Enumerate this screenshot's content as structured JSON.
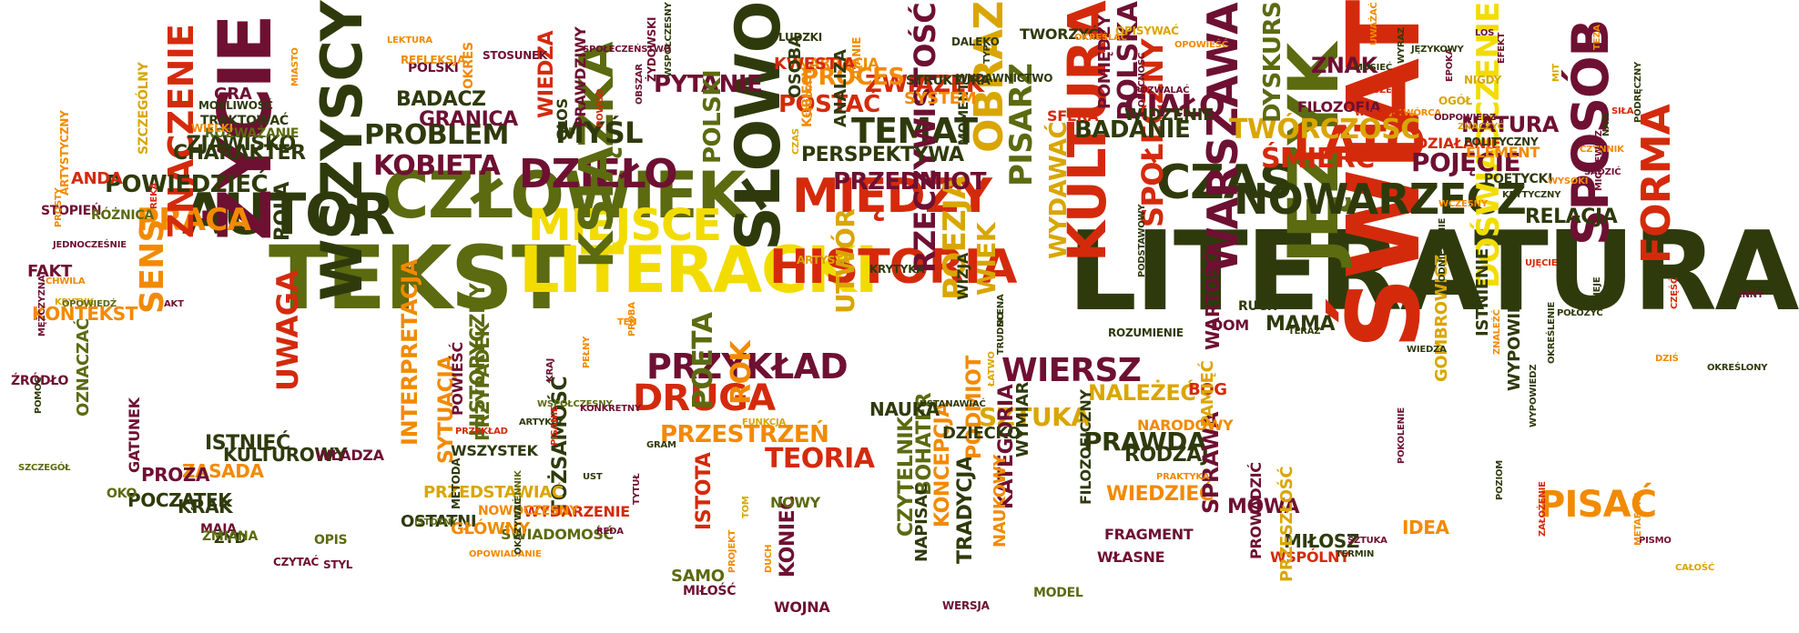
{
  "palette": {
    "dark_green": "#2f3a0c",
    "olive": "#5c6a10",
    "maroon": "#6e1032",
    "red": "#d42a0c",
    "orange": "#f28a00",
    "yellow": "#f2dc00",
    "gold": "#d9a600"
  },
  "words": [
    {
      "text": "LITERATURA",
      "color": "dark_green"
    },
    {
      "text": "TEKST",
      "color": "olive"
    },
    {
      "text": "ŚWIAT",
      "color": "red"
    },
    {
      "text": "CZŁOWIEK",
      "color": "olive"
    },
    {
      "text": "JĘZYK",
      "color": "olive"
    },
    {
      "text": "LITERACKI",
      "color": "yellow"
    },
    {
      "text": "AUTOR",
      "color": "dark_green"
    },
    {
      "text": "SŁOWO",
      "color": "dark_green"
    },
    {
      "text": "WSZYSCY",
      "color": "dark_green"
    },
    {
      "text": "KULTURA",
      "color": "red"
    },
    {
      "text": "ŻYCIE",
      "color": "maroon"
    },
    {
      "text": "HISTORIA",
      "color": "red"
    },
    {
      "text": "MIĘDZY",
      "color": "red"
    },
    {
      "text": "CZAS",
      "color": "dark_green"
    },
    {
      "text": "MIEJSCE",
      "color": "yellow"
    },
    {
      "text": "DZIEŁO",
      "color": "maroon"
    },
    {
      "text": "LATO",
      "color": "red"
    },
    {
      "text": "SPOSÓB",
      "color": "maroon"
    },
    {
      "text": "KSIĄŻKA",
      "color": "olive"
    },
    {
      "text": "NOWARZECZ",
      "color": "dark_green"
    },
    {
      "text": "PRACA",
      "color": "orange"
    },
    {
      "text": "WARSZAWA",
      "color": "maroon"
    },
    {
      "text": "OBRAZ",
      "color": "gold"
    },
    {
      "text": "FORMA",
      "color": "red"
    },
    {
      "text": "DRUGA",
      "color": "red"
    },
    {
      "text": "WIERSZ",
      "color": "maroon"
    },
    {
      "text": "PRZYKŁAD",
      "color": "maroon"
    },
    {
      "text": "DOŚWIADCZENIE",
      "color": "yellow"
    },
    {
      "text": "ZNACZENIE",
      "color": "red"
    },
    {
      "text": "PISAĆ",
      "color": "orange"
    },
    {
      "text": "TEMAT",
      "color": "dark_green"
    },
    {
      "text": "POEZJA",
      "color": "gold"
    },
    {
      "text": "PISARZ",
      "color": "olive"
    },
    {
      "text": "RZECZYWISTOŚĆ",
      "color": "maroon"
    },
    {
      "text": "SPOŁECZNY",
      "color": "red"
    },
    {
      "text": "UWAGA",
      "color": "red"
    },
    {
      "text": "SENS",
      "color": "orange"
    },
    {
      "text": "PROBLEM",
      "color": "dark_green"
    },
    {
      "text": "KOBIETA",
      "color": "maroon"
    },
    {
      "text": "MYŚL",
      "color": "dark_green"
    },
    {
      "text": "TWÓRCZOŚĆ",
      "color": "gold"
    },
    {
      "text": "ŚMIERĆ",
      "color": "red"
    },
    {
      "text": "PRZEDMIOT",
      "color": "maroon"
    },
    {
      "text": "UTWÓR",
      "color": "gold"
    },
    {
      "text": "PRZESTRZEŃ",
      "color": "orange"
    },
    {
      "text": "TEORIA",
      "color": "red"
    },
    {
      "text": "POWIEDZIEĆ",
      "color": "dark_green"
    },
    {
      "text": "PYTANIE",
      "color": "maroon"
    },
    {
      "text": "POETA",
      "color": "olive"
    },
    {
      "text": "ROK",
      "color": "orange"
    },
    {
      "text": "PRAWDA",
      "color": "dark_green"
    },
    {
      "text": "SZTUKA",
      "color": "gold"
    },
    {
      "text": "WIEK",
      "color": "gold"
    },
    {
      "text": "CIAŁO",
      "color": "maroon"
    },
    {
      "text": "POJĘCIE",
      "color": "maroon"
    },
    {
      "text": "WYDAWAĆ",
      "color": "gold"
    },
    {
      "text": "POLSKI",
      "color": "olive"
    },
    {
      "text": "POLSKA",
      "color": "maroon"
    },
    {
      "text": "ZWIĄZEK",
      "color": "red"
    },
    {
      "text": "PROCES",
      "color": "orange"
    },
    {
      "text": "POSTAĆ",
      "color": "red"
    },
    {
      "text": "PERSPEKTYWA",
      "color": "dark_green"
    },
    {
      "text": "BADANIE",
      "color": "dark_green"
    },
    {
      "text": "DYSKURS",
      "color": "olive"
    },
    {
      "text": "NATURA",
      "color": "maroon"
    },
    {
      "text": "RELACJA",
      "color": "dark_green"
    },
    {
      "text": "ZNAK",
      "color": "maroon"
    },
    {
      "text": "CHARAKTER",
      "color": "dark_green"
    },
    {
      "text": "ROLA",
      "color": "dark_green"
    },
    {
      "text": "ZJAWISKO",
      "color": "dark_green"
    },
    {
      "text": "GRANICA",
      "color": "maroon"
    },
    {
      "text": "BADACZ",
      "color": "dark_green"
    },
    {
      "text": "ISTNIEĆ",
      "color": "dark_green"
    },
    {
      "text": "INTERPRETACJA",
      "color": "orange"
    },
    {
      "text": "SYTUACJA",
      "color": "orange"
    },
    {
      "text": "HISTORYCZNY",
      "color": "olive"
    },
    {
      "text": "PRZYPADEK",
      "color": "olive"
    },
    {
      "text": "KONTEKST",
      "color": "orange"
    },
    {
      "text": "WIEDZA",
      "color": "red"
    },
    {
      "text": "MOWA",
      "color": "maroon"
    },
    {
      "text": "MIŁOSZ",
      "color": "dark_green"
    },
    {
      "text": "IDEA",
      "color": "orange"
    },
    {
      "text": "GOMBROWICZ",
      "color": "gold"
    },
    {
      "text": "WYPOWIEDŹ",
      "color": "dark_green"
    },
    {
      "text": "ISTNIENIE",
      "color": "dark_green"
    },
    {
      "text": "NALEŻEĆ",
      "color": "gold"
    },
    {
      "text": "WIEDZIEĆ",
      "color": "orange"
    },
    {
      "text": "RODZAJ",
      "color": "dark_green"
    },
    {
      "text": "SPRAWA",
      "color": "maroon"
    },
    {
      "text": "MAMA",
      "color": "dark_green"
    },
    {
      "text": "BÓG",
      "color": "red"
    },
    {
      "text": "WARTOŚĆ",
      "color": "maroon"
    },
    {
      "text": "TRADYCJA",
      "color": "dark_green"
    },
    {
      "text": "KATEGORIA",
      "color": "maroon"
    },
    {
      "text": "PODMIOT",
      "color": "orange"
    },
    {
      "text": "KONCEPCJA",
      "color": "orange"
    },
    {
      "text": "BOHATER",
      "color": "olive"
    },
    {
      "text": "CZYTELNIK",
      "color": "olive"
    },
    {
      "text": "ISTOTA",
      "color": "red"
    },
    {
      "text": "KONIEC",
      "color": "maroon"
    },
    {
      "text": "NAUKA",
      "color": "dark_green"
    },
    {
      "text": "DZIECKO",
      "color": "dark_green"
    },
    {
      "text": "TOŻSAMOŚĆ",
      "color": "dark_green"
    },
    {
      "text": "ŚWIADOMOŚĆ",
      "color": "olive"
    },
    {
      "text": "PRZEDSTAWIAĆ",
      "color": "gold"
    },
    {
      "text": "WSZYSTEK",
      "color": "dark_green"
    },
    {
      "text": "POWIEŚĆ",
      "color": "maroon"
    },
    {
      "text": "KULTUROWY",
      "color": "dark_green"
    },
    {
      "text": "ZASADA",
      "color": "orange"
    },
    {
      "text": "POCZĄTEK",
      "color": "dark_green"
    },
    {
      "text": "KRAK",
      "color": "dark_green"
    },
    {
      "text": "PROZA",
      "color": "maroon"
    },
    {
      "text": "OZNACZAĆ",
      "color": "olive"
    },
    {
      "text": "ŹRÓDŁO",
      "color": "maroon"
    },
    {
      "text": "ANDA",
      "color": "red"
    },
    {
      "text": "STOPIEŃ",
      "color": "maroon"
    },
    {
      "text": "FAKT",
      "color": "maroon"
    },
    {
      "text": "GRA",
      "color": "maroon"
    },
    {
      "text": "TRAKTOWAĆ",
      "color": "dark_green"
    },
    {
      "text": "GŁOS",
      "color": "dark_green"
    },
    {
      "text": "PRAWDZIWY",
      "color": "maroon"
    },
    {
      "text": "NARRACJA",
      "color": "orange"
    },
    {
      "text": "KWESTIA",
      "color": "red"
    },
    {
      "text": "MOMENT",
      "color": "dark_green"
    },
    {
      "text": "SYSTEM",
      "color": "orange"
    },
    {
      "text": "STRUKTURA",
      "color": "dark_green"
    },
    {
      "text": "TWORZYĆ",
      "color": "dark_green"
    },
    {
      "text": "POMIĘDZY",
      "color": "maroon"
    },
    {
      "text": "WIDZENIE",
      "color": "dark_green"
    },
    {
      "text": "FILOZOFIA",
      "color": "maroon"
    },
    {
      "text": "DZIAŁANIE",
      "color": "red"
    },
    {
      "text": "ELEMENT",
      "color": "orange"
    },
    {
      "text": "POETYCKI",
      "color": "dark_green"
    },
    {
      "text": "ANALIZA",
      "color": "dark_green"
    },
    {
      "text": "OSOBA",
      "color": "dark_green"
    },
    {
      "text": "WSPÓŁCZESNY",
      "color": "dark_green"
    },
    {
      "text": "ZDANIE",
      "color": "orange"
    },
    {
      "text": "LUDZKI",
      "color": "dark_green"
    },
    {
      "text": "ARTYSTA",
      "color": "gold"
    },
    {
      "text": "KRYTYKA",
      "color": "dark_green"
    },
    {
      "text": "WIZJA",
      "color": "dark_green"
    },
    {
      "text": "WYMIAR",
      "color": "dark_green"
    },
    {
      "text": "FILOZOFICZNY",
      "color": "dark_green"
    },
    {
      "text": "PAMIĘĆ",
      "color": "gold"
    },
    {
      "text": "WŁASNE",
      "color": "maroon"
    },
    {
      "text": "FRAGMENT",
      "color": "maroon"
    },
    {
      "text": "WSPÓLNY",
      "color": "red"
    },
    {
      "text": "PRZESZŁOŚĆ",
      "color": "gold"
    },
    {
      "text": "PROWADZIĆ",
      "color": "maroon"
    },
    {
      "text": "NARODOWY",
      "color": "orange"
    },
    {
      "text": "WŁADZA",
      "color": "maroon"
    },
    {
      "text": "MAJA",
      "color": "maroon"
    },
    {
      "text": "GATUNEK",
      "color": "maroon"
    },
    {
      "text": "OKO",
      "color": "olive"
    },
    {
      "text": "ŻYD",
      "color": "dark_green"
    },
    {
      "text": "CZYTAĆ",
      "color": "maroon"
    },
    {
      "text": "STYL",
      "color": "maroon"
    },
    {
      "text": "OSTATNI",
      "color": "dark_green"
    },
    {
      "text": "GŁÓWNY",
      "color": "orange"
    },
    {
      "text": "WYDARZENIE",
      "color": "red"
    },
    {
      "text": "SAMO",
      "color": "olive"
    },
    {
      "text": "MIŁOŚĆ",
      "color": "maroon"
    },
    {
      "text": "WOJNA",
      "color": "maroon"
    },
    {
      "text": "NOWY",
      "color": "olive"
    },
    {
      "text": "NAPISAĆ",
      "color": "dark_green"
    },
    {
      "text": "NAUKOWY",
      "color": "orange"
    },
    {
      "text": "MODEL",
      "color": "olive"
    },
    {
      "text": "OPIS",
      "color": "olive"
    },
    {
      "text": "NOWOCZESNY",
      "color": "orange"
    },
    {
      "text": "ZMIANA",
      "color": "olive"
    },
    {
      "text": "SFERA",
      "color": "red"
    },
    {
      "text": "MOŻLIWOŚĆ",
      "color": "dark_green"
    },
    {
      "text": "ROZWAŻANIE",
      "color": "olive"
    },
    {
      "text": "SZCZEGÓLNY",
      "color": "gold"
    },
    {
      "text": "OKRES",
      "color": "orange"
    },
    {
      "text": "POLSKI",
      "color": "maroon"
    },
    {
      "text": "REFLEKSJA",
      "color": "orange"
    },
    {
      "text": "STOSUNEK",
      "color": "maroon"
    },
    {
      "text": "LEKTURA",
      "color": "orange"
    },
    {
      "text": "OPOWIEŚĆ",
      "color": "orange"
    },
    {
      "text": "WYDAWNICTWO",
      "color": "dark_green"
    },
    {
      "text": "DALEKO",
      "color": "dark_green"
    },
    {
      "text": "OPISYWAĆ",
      "color": "gold"
    },
    {
      "text": "OGÓŁ",
      "color": "gold"
    },
    {
      "text": "NIGDY",
      "color": "gold"
    },
    {
      "text": "ZNACZYĆ",
      "color": "gold"
    },
    {
      "text": "POLITYCZNY",
      "color": "dark_green"
    },
    {
      "text": "DOM",
      "color": "maroon"
    },
    {
      "text": "RUCH",
      "color": "dark_green"
    },
    {
      "text": "ROZUMIENIE",
      "color": "dark_green"
    },
    {
      "text": "DZIŚ",
      "color": "orange"
    },
    {
      "text": "OKREŚLONY",
      "color": "dark_green"
    },
    {
      "text": "ZNALEŹĆ",
      "color": "orange"
    },
    {
      "text": "DZIEJE",
      "color": "dark_green"
    },
    {
      "text": "OBSZAR",
      "color": "maroon"
    },
    {
      "text": "POWÓD",
      "color": "red"
    },
    {
      "text": "ŻYDOWSKI",
      "color": "maroon"
    },
    {
      "text": "KOBIECY",
      "color": "orange"
    },
    {
      "text": "STUDIA",
      "color": "orange"
    },
    {
      "text": "CZAS",
      "color": "gold"
    },
    {
      "text": "PRÓBA",
      "color": "orange"
    },
    {
      "text": "PEŁNY",
      "color": "orange"
    },
    {
      "text": "RÓŻNICA",
      "color": "olive"
    },
    {
      "text": "WIELKI",
      "color": "orange"
    },
    {
      "text": "MIASTO",
      "color": "orange"
    },
    {
      "text": "AKT",
      "color": "maroon"
    },
    {
      "text": "FUNKCJA",
      "color": "gold"
    },
    {
      "text": "TEN",
      "color": "orange"
    },
    {
      "text": "GRAM",
      "color": "dark_green"
    },
    {
      "text": "TYTUŁ",
      "color": "maroon"
    },
    {
      "text": "PRZEKŁAD",
      "color": "red"
    },
    {
      "text": "METODA",
      "color": "dark_green"
    },
    {
      "text": "DZIENNIK",
      "color": "olive"
    },
    {
      "text": "REDA",
      "color": "maroon"
    },
    {
      "text": "TOM",
      "color": "gold"
    },
    {
      "text": "PROJEKT",
      "color": "orange"
    },
    {
      "text": "DUCH",
      "color": "orange"
    },
    {
      "text": "CHWILA",
      "color": "orange"
    },
    {
      "text": "KRYTYK",
      "color": "gold"
    },
    {
      "text": "UJĘCIE",
      "color": "red"
    },
    {
      "text": "REKA",
      "color": "red"
    },
    {
      "text": "POZWALAĆ",
      "color": "maroon"
    },
    {
      "text": "OBECNOŚĆ",
      "color": "maroon"
    },
    {
      "text": "OKREŚLAĆ",
      "color": "orange"
    },
    {
      "text": "SPOŁECZEŃSTWO",
      "color": "maroon"
    },
    {
      "text": "TYP",
      "color": "dark_green"
    },
    {
      "text": "EPOKA",
      "color": "maroon"
    },
    {
      "text": "SZTUKA",
      "color": "maroon"
    },
    {
      "text": "TERMIN",
      "color": "dark_green"
    },
    {
      "text": "WERSJA",
      "color": "maroon"
    },
    {
      "text": "PISMO",
      "color": "maroon"
    },
    {
      "text": "CAŁOŚĆ",
      "color": "gold"
    },
    {
      "text": "ARTYKUŁ",
      "color": "dark_green"
    },
    {
      "text": "PISANIE",
      "color": "red"
    },
    {
      "text": "UST",
      "color": "dark_green"
    },
    {
      "text": "WSPÓŁCZESNY",
      "color": "olive"
    },
    {
      "text": "TERAZ",
      "color": "dark_green"
    },
    {
      "text": "INNY",
      "color": "maroon"
    },
    {
      "text": "CZĘŚĆ",
      "color": "red"
    },
    {
      "text": "JĘZYKOWY",
      "color": "dark_green"
    },
    {
      "text": "EFEKT",
      "color": "maroon"
    },
    {
      "text": "LOS",
      "color": "maroon"
    },
    {
      "text": "MIT",
      "color": "gold"
    },
    {
      "text": "TEZA",
      "color": "orange"
    },
    {
      "text": "NASI",
      "color": "dark_green"
    },
    {
      "text": "WYSOKI",
      "color": "orange"
    },
    {
      "text": "PODRĘCZNY",
      "color": "dark_green"
    },
    {
      "text": "SIŁA",
      "color": "red"
    },
    {
      "text": "UWAŻAĆ",
      "color": "orange"
    },
    {
      "text": "MUSIEĆ",
      "color": "dark_green"
    },
    {
      "text": "WYRAZ",
      "color": "dark_green"
    },
    {
      "text": "KRYTYCZNY",
      "color": "dark_green"
    },
    {
      "text": "CZYNNIK",
      "color": "orange"
    },
    {
      "text": "PROSTY",
      "color": "orange"
    },
    {
      "text": "ARTYSTYCZNY",
      "color": "orange"
    },
    {
      "text": "OPOWIEDŹ",
      "color": "olive"
    },
    {
      "text": "JEDNOCZEŚNIE",
      "color": "maroon"
    },
    {
      "text": "MĘŻCZYZNA",
      "color": "maroon"
    },
    {
      "text": "POMOC",
      "color": "dark_green"
    },
    {
      "text": "SZCZEGÓŁ",
      "color": "olive"
    },
    {
      "text": "WCZESNY",
      "color": "orange"
    },
    {
      "text": "POZIOM",
      "color": "dark_green"
    },
    {
      "text": "KRAJ",
      "color": "maroon"
    },
    {
      "text": "KONKRETNY",
      "color": "maroon"
    },
    {
      "text": "ISTOTNY",
      "color": "olive"
    },
    {
      "text": "OPOWIADANIE",
      "color": "orange"
    },
    {
      "text": "OKAZYWAĆ",
      "color": "dark_green"
    },
    {
      "text": "USTANAWIAĆ",
      "color": "dark_green"
    },
    {
      "text": "ŁATWO",
      "color": "gold"
    },
    {
      "text": "TRUDNO",
      "color": "dark_green"
    },
    {
      "text": "SCENA",
      "color": "dark_green"
    },
    {
      "text": "PODSTAWOWY",
      "color": "dark_green"
    },
    {
      "text": "METAFORA",
      "color": "orange"
    },
    {
      "text": "ZAŁOŻENIE",
      "color": "red"
    },
    {
      "text": "PRAKTYKA",
      "color": "orange"
    },
    {
      "text": "WIEDZA",
      "color": "dark_green"
    },
    {
      "text": "POKOLENIE",
      "color": "maroon"
    },
    {
      "text": "ODNIESIENIE",
      "color": "dark_green"
    },
    {
      "text": "OKREŚLENIE",
      "color": "dark_green"
    },
    {
      "text": "WYPOWIEDZ",
      "color": "dark_green"
    },
    {
      "text": "TWÓRCA",
      "color": "orange"
    },
    {
      "text": "SZEŁĆ",
      "color": "red"
    },
    {
      "text": "ODPOWIEDZ",
      "color": "maroon"
    },
    {
      "text": "WYPADEK",
      "color": "red"
    },
    {
      "text": "SĄDZIĆ",
      "color": "maroon"
    },
    {
      "text": "MICKIEWICZ",
      "color": "maroon"
    },
    {
      "text": "POŁOŻYĆ",
      "color": "dark_green"
    }
  ]
}
